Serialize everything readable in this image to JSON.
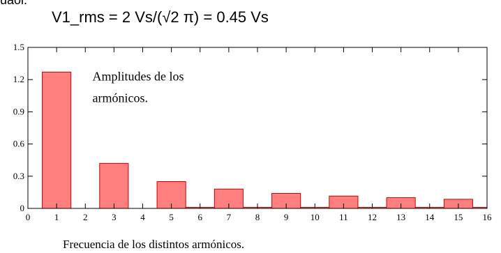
{
  "top_fragment": "uaoi.",
  "formula": "V1_rms = 2 Vs/(√2 π) = 0.45 Vs",
  "chart_data": {
    "type": "bar",
    "title": "",
    "xlabel": "Frecuencia de los distintos armónicos.",
    "ylabel": "",
    "annotation": [
      "Amplitudes de los",
      "armónicos."
    ],
    "xlim": [
      0,
      16
    ],
    "ylim": [
      0,
      1.5
    ],
    "x_ticks": [
      0,
      1,
      2,
      3,
      4,
      5,
      6,
      7,
      8,
      9,
      10,
      11,
      12,
      13,
      14,
      15,
      16
    ],
    "y_ticks": [
      0,
      0.3,
      0.6,
      0.9,
      1.2,
      1.5
    ],
    "x_tick_labels": [
      "0",
      "1",
      "2",
      "3",
      "4",
      "5",
      "6",
      "7",
      "8",
      "9",
      "10",
      "11",
      "12",
      "13",
      "14",
      "15",
      "16"
    ],
    "y_tick_labels": [
      "0",
      "0.3",
      "0.6",
      "0.9",
      "1.2",
      "1.5"
    ],
    "bar_width": 1,
    "x": [
      1,
      2,
      3,
      4,
      5,
      6,
      7,
      8,
      9,
      10,
      11,
      12,
      13,
      14,
      15,
      16
    ],
    "values": [
      1.27,
      0,
      0.42,
      0,
      0.25,
      0.01,
      0.18,
      0.01,
      0.14,
      0.01,
      0.115,
      0.01,
      0.1,
      0.01,
      0.085,
      0.01
    ],
    "bar_fill": "#ff7f7f",
    "bar_stroke": "#cc0000",
    "grid": false
  }
}
